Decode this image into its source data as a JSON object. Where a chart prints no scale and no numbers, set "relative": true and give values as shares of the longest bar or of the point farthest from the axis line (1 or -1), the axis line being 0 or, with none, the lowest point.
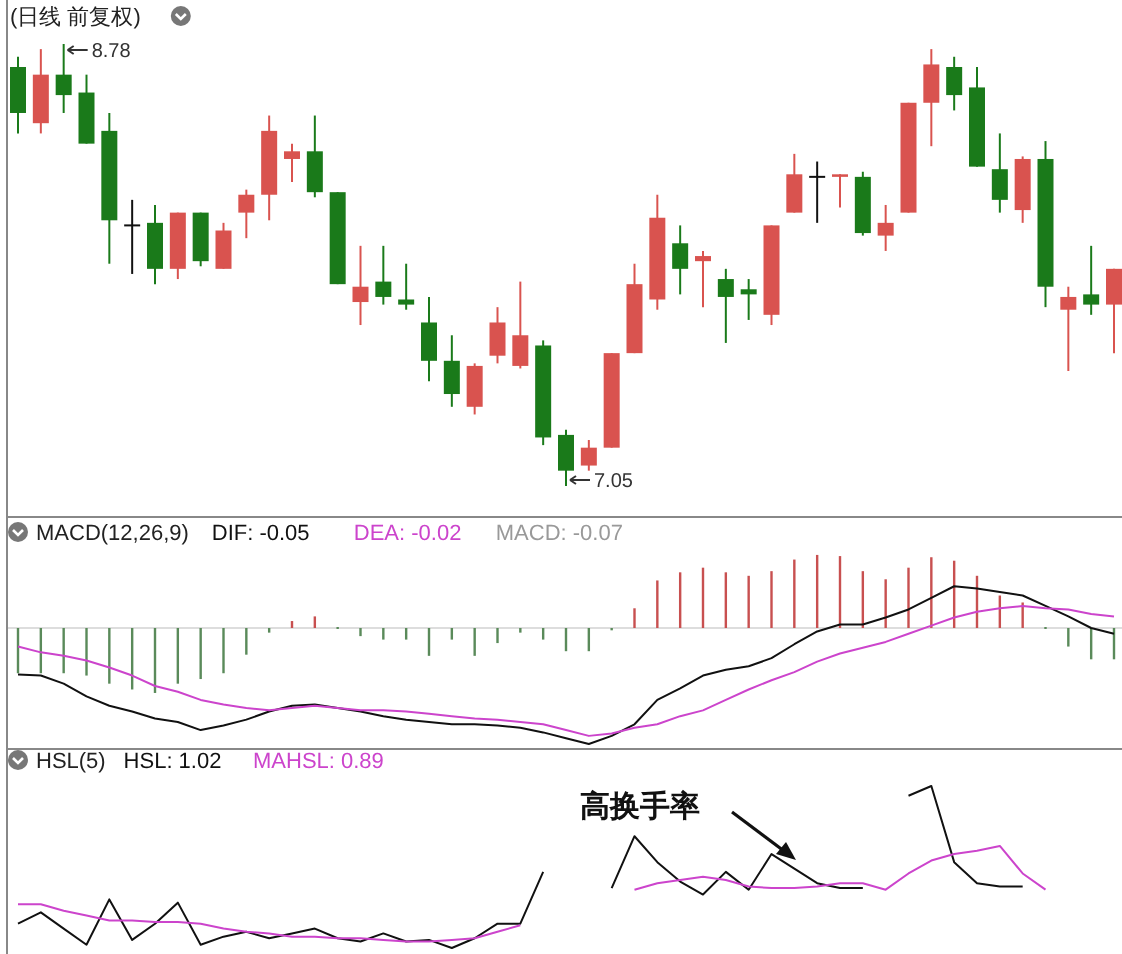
{
  "chart_data": [
    {
      "type": "candlestick",
      "title": "(日线 前复权)",
      "categories": [
        null,
        null,
        null,
        null,
        null,
        null,
        null,
        null,
        null,
        null,
        null,
        null,
        null,
        null,
        null,
        null,
        null,
        null,
        null,
        null,
        null,
        null,
        null,
        null,
        null,
        null,
        null,
        null,
        null,
        null,
        null,
        null,
        null,
        null,
        null,
        null,
        null,
        null,
        null,
        null,
        null,
        null,
        null,
        null,
        null,
        null,
        null,
        null,
        null
      ],
      "ohlc": [
        [
          8.69,
          8.73,
          8.43,
          8.51
        ],
        [
          8.47,
          8.76,
          8.43,
          8.66
        ],
        [
          8.66,
          8.78,
          8.51,
          8.58
        ],
        [
          8.59,
          8.66,
          8.39,
          8.39
        ],
        [
          8.44,
          8.51,
          7.92,
          8.09
        ],
        [
          8.07,
          8.17,
          7.88,
          8.07
        ],
        [
          8.08,
          8.15,
          7.84,
          7.9
        ],
        [
          7.9,
          8.12,
          7.86,
          8.12
        ],
        [
          8.12,
          8.12,
          7.91,
          7.93
        ],
        [
          7.9,
          8.08,
          7.9,
          8.05
        ],
        [
          8.12,
          8.21,
          8.02,
          8.19
        ],
        [
          8.19,
          8.5,
          8.09,
          8.44
        ],
        [
          8.33,
          8.39,
          8.24,
          8.36
        ],
        [
          8.36,
          8.5,
          8.18,
          8.2
        ],
        [
          8.2,
          8.2,
          7.84,
          7.84
        ],
        [
          7.77,
          7.99,
          7.68,
          7.83
        ],
        [
          7.85,
          7.99,
          7.76,
          7.79
        ],
        [
          7.78,
          7.92,
          7.74,
          7.76
        ],
        [
          7.69,
          7.79,
          7.46,
          7.54
        ],
        [
          7.54,
          7.64,
          7.36,
          7.41
        ],
        [
          7.36,
          7.53,
          7.33,
          7.52
        ],
        [
          7.56,
          7.75,
          7.53,
          7.69
        ],
        [
          7.52,
          7.85,
          7.51,
          7.64
        ],
        [
          7.6,
          7.62,
          7.21,
          7.24
        ],
        [
          7.25,
          7.27,
          7.05,
          7.11
        ],
        [
          7.13,
          7.23,
          7.11,
          7.2
        ],
        [
          7.2,
          7.57,
          7.2,
          7.57
        ],
        [
          7.57,
          7.92,
          7.57,
          7.84
        ],
        [
          7.78,
          8.19,
          7.74,
          8.1
        ],
        [
          8.0,
          8.07,
          7.8,
          7.9
        ],
        [
          7.93,
          7.97,
          7.75,
          7.95
        ],
        [
          7.86,
          7.9,
          7.61,
          7.79
        ],
        [
          7.82,
          7.86,
          7.7,
          7.8
        ],
        [
          7.72,
          8.07,
          7.68,
          8.07
        ],
        [
          8.12,
          8.35,
          8.12,
          8.27
        ],
        [
          8.26,
          8.32,
          8.08,
          8.26
        ],
        [
          8.26,
          8.27,
          8.14,
          8.27
        ],
        [
          8.26,
          8.28,
          8.03,
          8.04
        ],
        [
          8.03,
          8.15,
          7.97,
          8.08
        ],
        [
          8.12,
          8.55,
          8.12,
          8.55
        ],
        [
          8.55,
          8.76,
          8.38,
          8.7
        ],
        [
          8.69,
          8.73,
          8.52,
          8.58
        ],
        [
          8.61,
          8.69,
          8.3,
          8.3
        ],
        [
          8.29,
          8.43,
          8.12,
          8.17
        ],
        [
          8.13,
          8.34,
          8.08,
          8.33
        ],
        [
          8.33,
          8.4,
          7.75,
          7.83
        ],
        [
          7.74,
          7.83,
          7.5,
          7.79
        ],
        [
          7.8,
          7.99,
          7.72,
          7.76
        ],
        [
          7.76,
          7.9,
          7.57,
          7.9
        ]
      ],
      "annotations": [
        "8.78",
        "7.05"
      ]
    },
    {
      "type": "line",
      "title": "MACD(12,26,9)",
      "relative": true,
      "categories": [
        null,
        null,
        null,
        null,
        null,
        null,
        null,
        null,
        null,
        null,
        null,
        null,
        null,
        null,
        null,
        null,
        null,
        null,
        null,
        null,
        null,
        null,
        null,
        null,
        null,
        null,
        null,
        null,
        null,
        null,
        null,
        null,
        null,
        null,
        null,
        null,
        null,
        null,
        null,
        null,
        null,
        null,
        null,
        null,
        null,
        null,
        null,
        null,
        null
      ],
      "series": [
        {
          "name": "DIF: -0.05",
          "color": "#111111",
          "values": [
            -0.4,
            -0.41,
            -0.48,
            -0.59,
            -0.67,
            -0.72,
            -0.78,
            -0.81,
            -0.88,
            -0.84,
            -0.79,
            -0.72,
            -0.67,
            -0.66,
            -0.69,
            -0.72,
            -0.76,
            -0.79,
            -0.81,
            -0.83,
            -0.83,
            -0.84,
            -0.86,
            -0.9,
            -0.95,
            -1,
            -0.93,
            -0.83,
            -0.62,
            -0.52,
            -0.41,
            -0.36,
            -0.33,
            -0.26,
            -0.14,
            -0.03,
            0.03,
            0.03,
            0.09,
            0.16,
            0.26,
            0.36,
            0.34,
            0.31,
            0.28,
            0.19,
            0.1,
            0,
            -0.05
          ]
        },
        {
          "name": "DEA: -0.02",
          "color": "#cc44cc",
          "values": [
            -0.16,
            -0.21,
            -0.24,
            -0.28,
            -0.34,
            -0.41,
            -0.5,
            -0.55,
            -0.62,
            -0.66,
            -0.69,
            -0.71,
            -0.69,
            -0.67,
            -0.69,
            -0.71,
            -0.71,
            -0.72,
            -0.74,
            -0.76,
            -0.78,
            -0.79,
            -0.81,
            -0.83,
            -0.88,
            -0.93,
            -0.91,
            -0.86,
            -0.83,
            -0.76,
            -0.71,
            -0.62,
            -0.53,
            -0.45,
            -0.38,
            -0.29,
            -0.22,
            -0.17,
            -0.12,
            -0.05,
            0.02,
            0.09,
            0.14,
            0.17,
            0.19,
            0.17,
            0.16,
            0.12,
            0.1
          ]
        },
        {
          "name": "MACD: -0.07",
          "type": "bar",
          "color": "#999999",
          "colors": [
            "#5a8a5a",
            "#5a8a5a",
            "#5a8a5a",
            "#5a8a5a",
            "#5a8a5a",
            "#5a8a5a",
            "#5a8a5a",
            "#5a8a5a",
            "#5a8a5a",
            "#5a8a5a",
            "#5a8a5a",
            "#5a8a5a",
            "#c85050",
            "#c85050",
            "#5a8a5a",
            "#5a8a5a",
            "#5a8a5a",
            "#5a8a5a",
            "#5a8a5a",
            "#5a8a5a",
            "#5a8a5a",
            "#5a8a5a",
            "#5a8a5a",
            "#5a8a5a",
            "#5a8a5a",
            "#5a8a5a",
            "#5a8a5a",
            "#c85050",
            "#c85050",
            "#c85050",
            "#c85050",
            "#c85050",
            "#c85050",
            "#c85050",
            "#c85050",
            "#c85050",
            "#c85050",
            "#c85050",
            "#c85050",
            "#c85050",
            "#c85050",
            "#c85050",
            "#c85050",
            "#c85050",
            "#c85050",
            "#5a8a5a",
            "#5a8a5a",
            "#5a8a5a",
            "#5a8a5a"
          ],
          "values": [
            -0.39,
            -0.39,
            -0.39,
            -0.41,
            -0.48,
            -0.53,
            -0.56,
            -0.48,
            -0.44,
            -0.39,
            -0.23,
            -0.04,
            0.06,
            0.1,
            0,
            -0.07,
            -0.1,
            -0.1,
            -0.24,
            -0.1,
            -0.24,
            -0.13,
            -0.04,
            -0.1,
            -0.2,
            -0.2,
            -0.02,
            0.17,
            0.41,
            0.48,
            0.52,
            0.48,
            0.45,
            0.49,
            0.59,
            0.63,
            0.62,
            0.49,
            0.42,
            0.52,
            0.61,
            0.58,
            0.45,
            0.28,
            0.22,
            0,
            -0.16,
            -0.27,
            -0.27
          ]
        }
      ]
    },
    {
      "type": "line",
      "title": "HSL(5)",
      "relative": true,
      "categories": [
        null,
        null,
        null,
        null,
        null,
        null,
        null,
        null,
        null,
        null,
        null,
        null,
        null,
        null,
        null,
        null,
        null,
        null,
        null,
        null,
        null,
        null,
        null,
        null,
        null,
        null,
        null,
        null,
        null,
        null,
        null,
        null,
        null,
        null,
        null,
        null,
        null,
        null,
        null,
        null,
        null,
        null,
        null,
        null,
        null,
        null,
        null,
        null,
        null
      ],
      "annotations": [
        "高换手率"
      ],
      "series": [
        {
          "name": "HSL: 1.02",
          "color": "#111111",
          "values": [
            0.15,
            0.22,
            0.12,
            0.02,
            0.3,
            0.05,
            0.15,
            0.28,
            0.02,
            0.07,
            0.1,
            0.06,
            0.09,
            0.12,
            0.06,
            0.04,
            0.09,
            0.04,
            0.05,
            0,
            0.06,
            0.15,
            0.15,
            0.47,
            null,
            null,
            0.37,
            0.69,
            0.53,
            0.41,
            0.33,
            0.47,
            0.36,
            0.58,
            0.49,
            0.4,
            0.37,
            0.37,
            null,
            0.94,
            1,
            0.53,
            0.4,
            0.38,
            0.38,
            null,
            null,
            null,
            null
          ]
        },
        {
          "name": "MAHSL: 0.89",
          "color": "#cc44cc",
          "values": [
            0.27,
            0.27,
            0.23,
            0.2,
            0.17,
            0.17,
            0.16,
            0.16,
            0.15,
            0.12,
            0.1,
            0.09,
            0.07,
            0.07,
            0.06,
            0.06,
            0.05,
            0.04,
            0.04,
            0.05,
            0.06,
            0.1,
            0.14,
            null,
            null,
            null,
            null,
            0.36,
            0.4,
            0.42,
            0.44,
            0.42,
            0.38,
            0.37,
            0.37,
            0.38,
            0.4,
            0.4,
            0.36,
            0.46,
            0.54,
            0.58,
            0.6,
            0.63,
            0.46,
            0.36,
            null,
            null,
            null
          ]
        }
      ]
    }
  ]
}
